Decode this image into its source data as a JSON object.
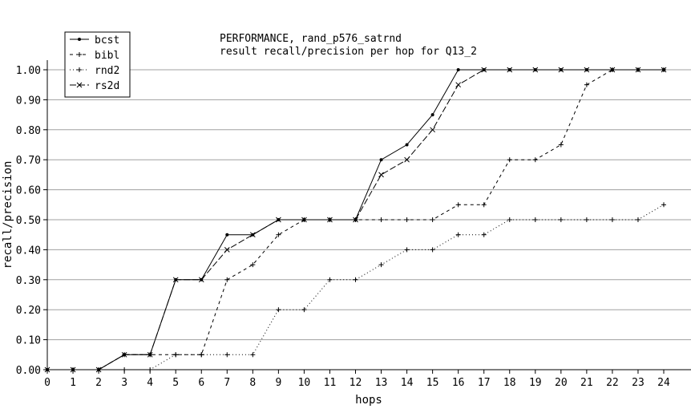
{
  "chart_data": {
    "type": "line",
    "title": "PERFORMANCE, rand_p576_satrnd",
    "subtitle": "result recall/precision per hop for Q13_2",
    "xlabel": "hops",
    "ylabel": "recall/precision",
    "x": [
      0,
      1,
      2,
      3,
      4,
      5,
      6,
      7,
      8,
      9,
      10,
      11,
      12,
      13,
      14,
      15,
      16,
      17,
      18,
      19,
      20,
      21,
      22,
      23,
      24
    ],
    "xlim": [
      0,
      24
    ],
    "ylim": [
      0,
      1
    ],
    "x_ticks": [
      "0",
      "1",
      "2",
      "3",
      "4",
      "5",
      "6",
      "7",
      "8",
      "9",
      "10",
      "11",
      "12",
      "13",
      "14",
      "15",
      "16",
      "17",
      "18",
      "19",
      "20",
      "21",
      "22",
      "23",
      "24"
    ],
    "y_ticks": [
      0,
      0.1,
      0.2,
      0.3,
      0.4,
      0.5,
      0.6,
      0.7,
      0.8,
      0.9,
      1.0
    ],
    "y_tick_labels": [
      "0.00",
      "0.10",
      "0.20",
      "0.30",
      "0.40",
      "0.50",
      "0.60",
      "0.70",
      "0.80",
      "0.90",
      "1.00"
    ],
    "grid": "horizontal",
    "legend_position": "top-left",
    "series": [
      {
        "name": "bcst",
        "marker": "dot",
        "dash": "solid",
        "values": [
          0,
          0,
          0,
          0.05,
          0.05,
          0.3,
          0.3,
          0.45,
          0.45,
          0.5,
          0.5,
          0.5,
          0.5,
          0.7,
          0.75,
          0.85,
          1.0,
          1.0,
          1.0,
          1.0,
          1.0,
          1.0,
          1.0,
          1.0,
          1.0
        ]
      },
      {
        "name": "bibl",
        "marker": "plus",
        "dash": "dashed",
        "values": [
          0,
          0,
          0,
          0.05,
          0.05,
          0.05,
          0.05,
          0.3,
          0.35,
          0.45,
          0.5,
          0.5,
          0.5,
          0.5,
          0.5,
          0.5,
          0.55,
          0.55,
          0.7,
          0.7,
          0.75,
          0.95,
          1.0,
          1.0,
          1.0
        ]
      },
      {
        "name": "rnd2",
        "marker": "plus",
        "dash": "dotted",
        "values": [
          0,
          0,
          0,
          0,
          0,
          0.05,
          0.05,
          0.05,
          0.05,
          0.2,
          0.2,
          0.3,
          0.3,
          0.35,
          0.4,
          0.4,
          0.45,
          0.45,
          0.5,
          0.5,
          0.5,
          0.5,
          0.5,
          0.5,
          0.55
        ]
      },
      {
        "name": "rs2d",
        "marker": "x",
        "dash": "longdash",
        "values": [
          0,
          0,
          0,
          0.05,
          0.05,
          0.3,
          0.3,
          0.4,
          0.45,
          0.5,
          0.5,
          0.5,
          0.5,
          0.65,
          0.7,
          0.8,
          0.95,
          1.0,
          1.0,
          1.0,
          1.0,
          1.0,
          1.0,
          1.0,
          1.0
        ]
      }
    ]
  }
}
